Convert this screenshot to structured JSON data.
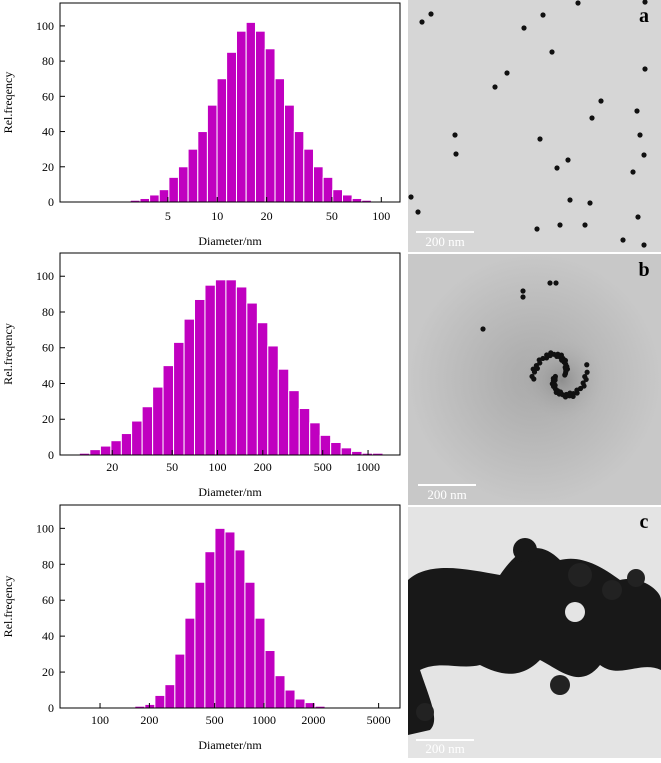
{
  "chart_data": [
    {
      "type": "histogram",
      "x_label": "Diameter/nm",
      "y_label": "Rel.freqency",
      "color": "#c000c0",
      "x_log": true,
      "bins": [
        2.95,
        3.38,
        3.87,
        4.43,
        5.07,
        5.8,
        6.64,
        7.61,
        8.71,
        9.97,
        11.4,
        13.1,
        15.0,
        17.1,
        19.6,
        22.5,
        25.7,
        29.5,
        33.7,
        38.6,
        44.2,
        50.6,
        58.0,
        66.4,
        76.0,
        87.0
      ],
      "values": [
        1,
        2,
        4,
        7,
        14,
        20,
        30,
        40,
        55,
        70,
        85,
        97,
        102,
        97,
        87,
        70,
        55,
        40,
        30,
        20,
        14,
        7,
        4,
        2,
        1
      ],
      "xlim": [
        1.1,
        130
      ],
      "xticks": [
        5,
        10,
        20,
        50,
        100
      ],
      "ylim": [
        0,
        113
      ],
      "yticks": [
        0,
        20,
        40,
        60,
        80,
        100
      ]
    },
    {
      "type": "histogram",
      "x_label": "Diameter/nm",
      "y_label": "Rel.freqency",
      "color": "#c000c0",
      "x_log": true,
      "bins": [
        12.1,
        14.2,
        16.7,
        19.6,
        23.0,
        26.9,
        31.6,
        37.1,
        43.5,
        51.1,
        60.0,
        70.4,
        82.6,
        96.9,
        113.8,
        133.5,
        156.7,
        184.0,
        215.9,
        253.4,
        297.4,
        349.1,
        409.8,
        481.0,
        564.5,
        662.6,
        777.7,
        912.8,
        1071,
        1257
      ],
      "values": [
        1,
        3,
        5,
        8,
        12,
        19,
        27,
        38,
        50,
        63,
        76,
        87,
        95,
        98,
        98,
        94,
        85,
        74,
        61,
        48,
        36,
        26,
        18,
        11,
        7,
        4,
        2,
        1,
        1
      ],
      "xlim": [
        9,
        1630
      ],
      "xticks": [
        20,
        50,
        100,
        200,
        500,
        1000
      ],
      "ylim": [
        0,
        113
      ],
      "yticks": [
        0,
        20,
        40,
        60,
        80,
        100
      ]
    },
    {
      "type": "histogram",
      "x_label": "Diameter/nm",
      "y_label": "Rel.freqency",
      "color": "#c000c0",
      "x_log": true,
      "bins": [
        163,
        187.6,
        216,
        248.6,
        286,
        329.3,
        379,
        436,
        502,
        578,
        665,
        765,
        881,
        1014,
        1167,
        1343,
        1546,
        1779,
        2048,
        2357
      ],
      "values": [
        1,
        2,
        7,
        13,
        30,
        50,
        70,
        87,
        100,
        98,
        88,
        70,
        50,
        32,
        18,
        10,
        5,
        3,
        1
      ],
      "xlim": [
        57,
        6750
      ],
      "xticks": [
        100,
        200,
        500,
        1000,
        2000,
        5000
      ],
      "ylim": [
        0,
        113
      ],
      "yticks": [
        0,
        20,
        40,
        60,
        80,
        100
      ]
    }
  ],
  "images": [
    {
      "label": "a",
      "scale_bar": "200 nm"
    },
    {
      "label": "b",
      "scale_bar": "200 nm"
    },
    {
      "label": "c",
      "scale_bar": "200 nm"
    }
  ]
}
